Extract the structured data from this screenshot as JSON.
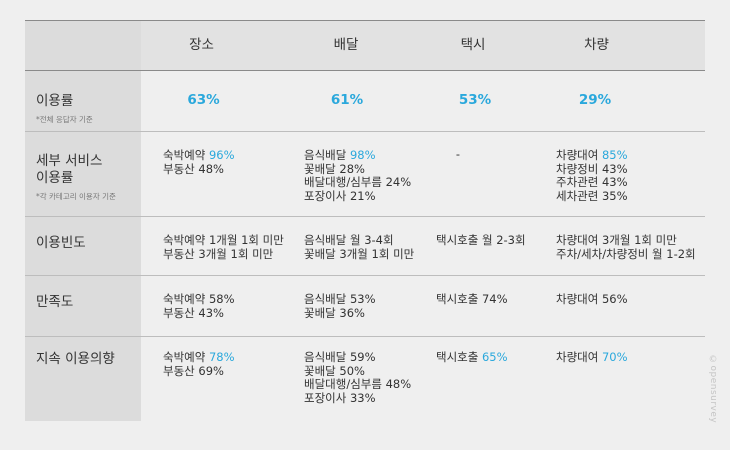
{
  "columns": [
    "장소",
    "배달",
    "택시",
    "차량"
  ],
  "rows": {
    "usage": {
      "title": "이용률",
      "note": "*전체 응답자 기준",
      "values": [
        "63%",
        "61%",
        "53%",
        "29%"
      ]
    },
    "detail": {
      "title_line1": "세부 서비스",
      "title_line2": "이용률",
      "note": "*각 카테고리 이용자 기준",
      "place": [
        [
          "숙박예약",
          "96%"
        ],
        [
          "부동산",
          "48%"
        ]
      ],
      "delivery": [
        [
          "음식배달",
          "98%"
        ],
        [
          "꽃배달",
          "28%"
        ],
        [
          "배달대행/심부름",
          "24%"
        ],
        [
          "포장이사",
          "21%"
        ]
      ],
      "taxi": "-",
      "vehicle": [
        [
          "차량대여",
          "85%"
        ],
        [
          "차량정비",
          "43%"
        ],
        [
          "주차관련",
          "43%"
        ],
        [
          "세차관련",
          "35%"
        ]
      ]
    },
    "frequency": {
      "title": "이용빈도",
      "place": [
        "숙박예약 1개월 1회 미만",
        "부동산 3개월 1회 미만"
      ],
      "delivery": [
        "음식배달 월 3-4회",
        "꽃배달 3개월 1회 미만"
      ],
      "taxi": [
        "택시호출 월 2-3회"
      ],
      "vehicle": [
        "차량대여 3개월 1회 미만",
        "주차/세차/차량정비 월 1-2회"
      ]
    },
    "satisfaction": {
      "title": "만족도",
      "place": [
        [
          "숙박예약",
          "58%"
        ],
        [
          "부동산",
          "43%"
        ]
      ],
      "delivery": [
        [
          "음식배달",
          "53%"
        ],
        [
          "꽃배달",
          "36%"
        ]
      ],
      "taxi": [
        [
          "택시호출",
          "74%"
        ]
      ],
      "vehicle": [
        [
          "차량대여",
          "56%"
        ]
      ]
    },
    "continue": {
      "title": "지속 이용의향",
      "place": [
        [
          "숙박예약",
          "78%"
        ],
        [
          "부동산",
          "69%"
        ]
      ],
      "delivery": [
        [
          "음식배달",
          "59%"
        ],
        [
          "꽃배달",
          "50%"
        ],
        [
          "배달대행/심부름",
          "48%"
        ],
        [
          "포장이사",
          "33%"
        ]
      ],
      "taxi": [
        [
          "택시호출",
          "65%"
        ]
      ],
      "vehicle": [
        [
          "차량대여",
          "70%"
        ]
      ]
    }
  },
  "watermark": "©opensurvey",
  "colors": {
    "highlight": "#2aa8dc"
  }
}
